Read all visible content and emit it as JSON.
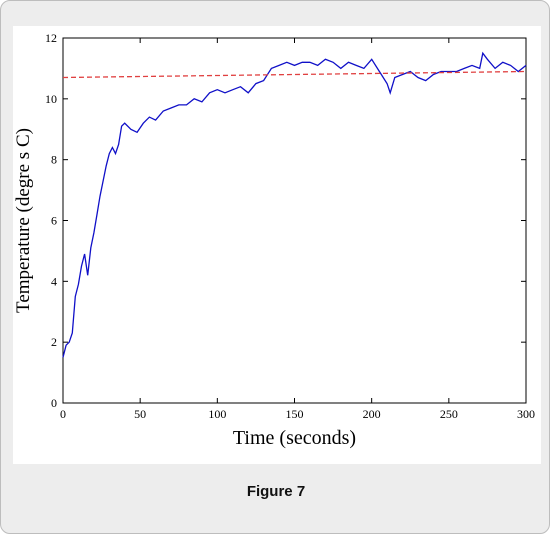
{
  "caption": "Figure 7",
  "chart_data": {
    "type": "line",
    "xlabel": "Time (seconds)",
    "ylabel": "Temperature (degre s C)",
    "xlim": [
      0,
      300
    ],
    "ylim": [
      0,
      12
    ],
    "x_ticks": [
      "0",
      "50",
      "100",
      "150",
      "200",
      "250",
      "300"
    ],
    "y_ticks": [
      "0",
      "2",
      "4",
      "6",
      "8",
      "10",
      "12"
    ],
    "grid": false,
    "series": [
      {
        "style": "solid",
        "color": "#1010c8",
        "x": [
          0,
          2,
          4,
          6,
          8,
          10,
          12,
          14,
          16,
          18,
          20,
          22,
          24,
          26,
          28,
          30,
          32,
          34,
          36,
          38,
          40,
          44,
          48,
          52,
          56,
          60,
          65,
          70,
          75,
          80,
          85,
          90,
          95,
          100,
          105,
          110,
          115,
          120,
          125,
          130,
          135,
          140,
          145,
          150,
          155,
          160,
          165,
          170,
          175,
          180,
          185,
          190,
          195,
          200,
          205,
          210,
          212,
          215,
          220,
          225,
          230,
          235,
          240,
          245,
          250,
          255,
          260,
          265,
          270,
          272,
          275,
          280,
          285,
          290,
          295,
          300
        ],
        "y": [
          1.5,
          1.9,
          2.0,
          2.3,
          3.5,
          3.9,
          4.5,
          4.9,
          4.2,
          5.1,
          5.6,
          6.2,
          6.8,
          7.3,
          7.8,
          8.2,
          8.4,
          8.2,
          8.5,
          9.1,
          9.2,
          9.0,
          8.9,
          9.2,
          9.4,
          9.3,
          9.6,
          9.7,
          9.8,
          9.8,
          10.0,
          9.9,
          10.2,
          10.3,
          10.2,
          10.3,
          10.4,
          10.2,
          10.5,
          10.6,
          11.0,
          11.1,
          11.2,
          11.1,
          11.2,
          11.2,
          11.1,
          11.3,
          11.2,
          11.0,
          11.2,
          11.1,
          11.0,
          11.3,
          10.9,
          10.5,
          10.2,
          10.7,
          10.8,
          10.9,
          10.7,
          10.6,
          10.8,
          10.9,
          10.9,
          10.9,
          11.0,
          11.1,
          11.0,
          11.5,
          11.3,
          11.0,
          11.2,
          11.1,
          10.9,
          11.1
        ]
      },
      {
        "style": "dashed",
        "color": "#e04040",
        "x": [
          0,
          300
        ],
        "y": [
          10.7,
          10.9
        ]
      }
    ]
  }
}
